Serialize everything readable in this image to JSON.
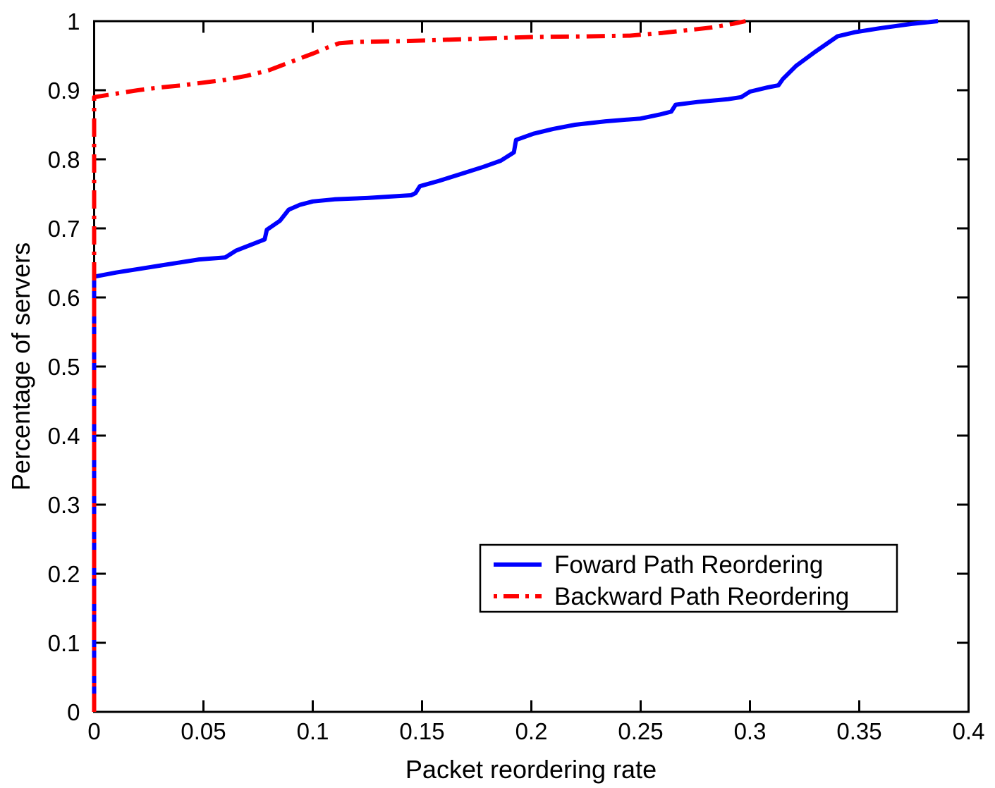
{
  "figure": {
    "background_color": "#ffffff",
    "axis_color": "#000000"
  },
  "chart_data": {
    "type": "line",
    "title": "",
    "xlabel": "Packet reordering rate",
    "ylabel": "Percentage of servers",
    "xlim": [
      0,
      0.4
    ],
    "ylim": [
      0,
      1
    ],
    "grid": false,
    "xtick_values": [
      0,
      0.05,
      0.1,
      0.15,
      0.2,
      0.25,
      0.3,
      0.35,
      0.4
    ],
    "xtick_labels": [
      "0",
      "0.05",
      "0.1",
      "0.15",
      "0.2",
      "0.25",
      "0.3",
      "0.35",
      "0.4"
    ],
    "ytick_values": [
      0,
      0.1,
      0.2,
      0.3,
      0.4,
      0.5,
      0.6,
      0.7,
      0.8,
      0.9,
      1
    ],
    "ytick_labels": [
      "0",
      "0.1",
      "0.2",
      "0.3",
      "0.4",
      "0.5",
      "0.6",
      "0.7",
      "0.8",
      "0.9",
      "1"
    ],
    "legend": {
      "position": "inside-lower-right",
      "border": true
    },
    "series": [
      {
        "name": "Foward Path Reordering",
        "color": "#0000ff",
        "style": "solid",
        "points": [
          [
            0,
            0
          ],
          [
            0,
            0.63
          ],
          [
            0.01,
            0.636
          ],
          [
            0.02,
            0.641
          ],
          [
            0.03,
            0.646
          ],
          [
            0.04,
            0.651
          ],
          [
            0.048,
            0.655
          ],
          [
            0.06,
            0.658
          ],
          [
            0.065,
            0.668
          ],
          [
            0.078,
            0.684
          ],
          [
            0.079,
            0.698
          ],
          [
            0.085,
            0.711
          ],
          [
            0.089,
            0.727
          ],
          [
            0.094,
            0.734
          ],
          [
            0.1,
            0.739
          ],
          [
            0.11,
            0.742
          ],
          [
            0.125,
            0.744
          ],
          [
            0.145,
            0.748
          ],
          [
            0.147,
            0.751
          ],
          [
            0.149,
            0.761
          ],
          [
            0.158,
            0.769
          ],
          [
            0.168,
            0.779
          ],
          [
            0.178,
            0.789
          ],
          [
            0.186,
            0.798
          ],
          [
            0.191,
            0.808
          ],
          [
            0.192,
            0.81
          ],
          [
            0.193,
            0.828
          ],
          [
            0.201,
            0.837
          ],
          [
            0.21,
            0.844
          ],
          [
            0.22,
            0.85
          ],
          [
            0.234,
            0.855
          ],
          [
            0.25,
            0.859
          ],
          [
            0.259,
            0.865
          ],
          [
            0.264,
            0.869
          ],
          [
            0.266,
            0.879
          ],
          [
            0.276,
            0.883
          ],
          [
            0.29,
            0.887
          ],
          [
            0.296,
            0.89
          ],
          [
            0.3,
            0.898
          ],
          [
            0.308,
            0.904
          ],
          [
            0.313,
            0.907
          ],
          [
            0.315,
            0.916
          ],
          [
            0.321,
            0.935
          ],
          [
            0.33,
            0.956
          ],
          [
            0.34,
            0.978
          ],
          [
            0.348,
            0.984
          ],
          [
            0.36,
            0.99
          ],
          [
            0.374,
            0.996
          ],
          [
            0.386,
            1.0
          ]
        ]
      },
      {
        "name": "Backward Path Reordering",
        "color": "#ff0000",
        "style": "dash-dot",
        "points": [
          [
            0,
            0
          ],
          [
            0,
            0.89
          ],
          [
            0.01,
            0.895
          ],
          [
            0.02,
            0.9
          ],
          [
            0.03,
            0.904
          ],
          [
            0.04,
            0.907
          ],
          [
            0.05,
            0.911
          ],
          [
            0.06,
            0.915
          ],
          [
            0.07,
            0.921
          ],
          [
            0.08,
            0.929
          ],
          [
            0.09,
            0.941
          ],
          [
            0.1,
            0.953
          ],
          [
            0.107,
            0.962
          ],
          [
            0.112,
            0.968
          ],
          [
            0.12,
            0.97
          ],
          [
            0.14,
            0.971
          ],
          [
            0.16,
            0.973
          ],
          [
            0.18,
            0.975
          ],
          [
            0.2,
            0.977
          ],
          [
            0.225,
            0.978
          ],
          [
            0.245,
            0.979
          ],
          [
            0.26,
            0.983
          ],
          [
            0.272,
            0.987
          ],
          [
            0.283,
            0.991
          ],
          [
            0.292,
            0.996
          ],
          [
            0.298,
            1.0
          ]
        ]
      }
    ]
  }
}
